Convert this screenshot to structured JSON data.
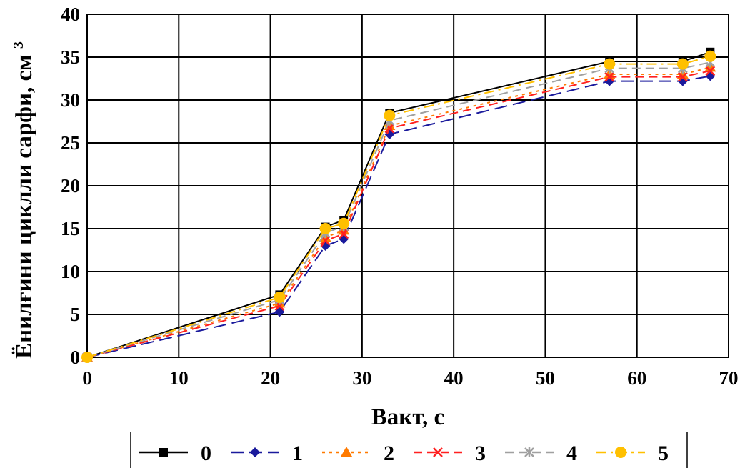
{
  "chart_data": {
    "type": "line",
    "title": "",
    "xlabel": "Вакт, с",
    "ylabel": "Ёнилғини циклли сарфи, см",
    "ylabel_sup": "3",
    "xlim": [
      0,
      70
    ],
    "ylim": [
      0,
      40
    ],
    "xticks": [
      0,
      10,
      20,
      30,
      40,
      50,
      60,
      70
    ],
    "yticks": [
      0,
      5,
      10,
      15,
      20,
      25,
      30,
      35,
      40
    ],
    "grid": true,
    "legend_position": "bottom",
    "series": [
      {
        "name": "0",
        "color": "#000000",
        "dash": "solid",
        "marker": "square",
        "x": [
          0,
          21,
          26,
          28,
          33,
          57,
          65,
          68
        ],
        "y": [
          0,
          7.3,
          15.2,
          16.0,
          28.5,
          34.5,
          34.5,
          35.6
        ]
      },
      {
        "name": "1",
        "color": "#1a1a9c",
        "dash": "long-dash",
        "marker": "diamond",
        "x": [
          0,
          21,
          26,
          28,
          33,
          57,
          65,
          68
        ],
        "y": [
          0,
          5.3,
          13.0,
          13.8,
          26.0,
          32.2,
          32.2,
          32.8
        ]
      },
      {
        "name": "2",
        "color": "#ff7a00",
        "dash": "dot",
        "marker": "triangle",
        "x": [
          0,
          21,
          26,
          28,
          33,
          57,
          65,
          68
        ],
        "y": [
          0,
          6.3,
          14.0,
          14.8,
          27.0,
          33.0,
          33.0,
          33.8
        ]
      },
      {
        "name": "3",
        "color": "#ff2020",
        "dash": "dash",
        "marker": "x",
        "x": [
          0,
          21,
          26,
          28,
          33,
          57,
          65,
          68
        ],
        "y": [
          0,
          6.0,
          13.6,
          14.4,
          26.7,
          32.7,
          32.7,
          33.4
        ]
      },
      {
        "name": "4",
        "color": "#a0a0a0",
        "dash": "dash",
        "marker": "star",
        "x": [
          0,
          21,
          26,
          28,
          33,
          57,
          65,
          68
        ],
        "y": [
          0,
          6.7,
          14.5,
          15.3,
          27.6,
          33.7,
          33.7,
          34.4
        ]
      },
      {
        "name": "5",
        "color": "#ffc000",
        "dash": "dash-dot",
        "marker": "circle",
        "x": [
          0,
          21,
          26,
          28,
          33,
          57,
          65,
          68
        ],
        "y": [
          0,
          7.0,
          15.0,
          15.6,
          28.2,
          34.2,
          34.2,
          35.1
        ]
      }
    ]
  }
}
